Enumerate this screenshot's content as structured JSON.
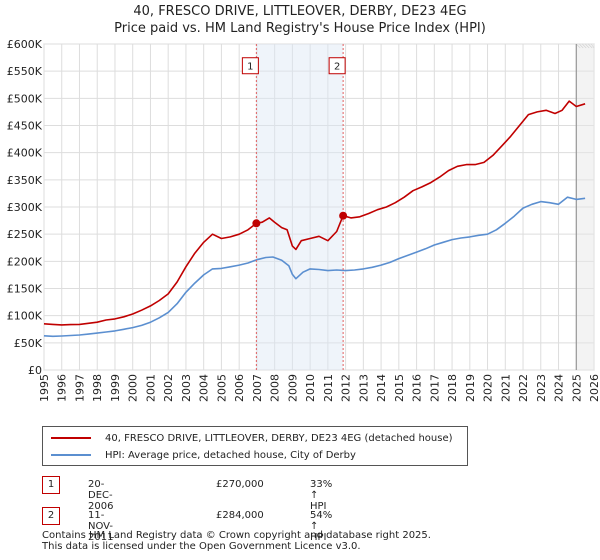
{
  "chart_data": {
    "type": "line",
    "title": "40, FRESCO DRIVE, LITTLEOVER, DERBY, DE23 4EG",
    "subtitle": "Price paid vs. HM Land Registry's House Price Index (HPI)",
    "xlim": [
      1995,
      2026
    ],
    "ylim": [
      0,
      600000
    ],
    "x_ticks": [
      1995,
      1996,
      1997,
      1998,
      1999,
      2000,
      2001,
      2002,
      2003,
      2004,
      2005,
      2006,
      2007,
      2008,
      2009,
      2010,
      2011,
      2012,
      2013,
      2014,
      2015,
      2016,
      2017,
      2018,
      2019,
      2020,
      2021,
      2022,
      2023,
      2024,
      2025,
      2026
    ],
    "y_ticks": [
      {
        "value": 0,
        "label": "£0"
      },
      {
        "value": 50000,
        "label": "£50K"
      },
      {
        "value": 100000,
        "label": "£100K"
      },
      {
        "value": 150000,
        "label": "£150K"
      },
      {
        "value": 200000,
        "label": "£200K"
      },
      {
        "value": 250000,
        "label": "£250K"
      },
      {
        "value": 300000,
        "label": "£300K"
      },
      {
        "value": 350000,
        "label": "£350K"
      },
      {
        "value": 400000,
        "label": "£400K"
      },
      {
        "value": 450000,
        "label": "£450K"
      },
      {
        "value": 500000,
        "label": "£500K"
      },
      {
        "value": 550000,
        "label": "£550K"
      },
      {
        "value": 600000,
        "label": "£600K"
      }
    ],
    "grid": true,
    "shaded_period": [
      2006.97,
      2011.86
    ],
    "forecast_from": 2025.0,
    "series": [
      {
        "name": "40, FRESCO DRIVE, LITTLEOVER, DERBY, DE23 4EG (detached house)",
        "color": "#c00000",
        "points": [
          [
            1995.0,
            85000
          ],
          [
            1995.5,
            84000
          ],
          [
            1996.0,
            83000
          ],
          [
            1996.5,
            83500
          ],
          [
            1997.0,
            84000
          ],
          [
            1997.5,
            86000
          ],
          [
            1998.0,
            88000
          ],
          [
            1998.5,
            92000
          ],
          [
            1999.0,
            94000
          ],
          [
            1999.5,
            98000
          ],
          [
            2000.0,
            103000
          ],
          [
            2000.5,
            110000
          ],
          [
            2001.0,
            118000
          ],
          [
            2001.5,
            128000
          ],
          [
            2002.0,
            140000
          ],
          [
            2002.5,
            162000
          ],
          [
            2003.0,
            190000
          ],
          [
            2003.5,
            215000
          ],
          [
            2004.0,
            235000
          ],
          [
            2004.5,
            250000
          ],
          [
            2005.0,
            242000
          ],
          [
            2005.5,
            245000
          ],
          [
            2006.0,
            250000
          ],
          [
            2006.5,
            258000
          ],
          [
            2006.97,
            270000
          ],
          [
            2007.3,
            272000
          ],
          [
            2007.7,
            280000
          ],
          [
            2008.0,
            272000
          ],
          [
            2008.4,
            262000
          ],
          [
            2008.7,
            258000
          ],
          [
            2009.0,
            228000
          ],
          [
            2009.2,
            222000
          ],
          [
            2009.5,
            238000
          ],
          [
            2010.0,
            242000
          ],
          [
            2010.5,
            246000
          ],
          [
            2011.0,
            238000
          ],
          [
            2011.5,
            255000
          ],
          [
            2011.86,
            284000
          ],
          [
            2012.3,
            280000
          ],
          [
            2012.8,
            282000
          ],
          [
            2013.3,
            288000
          ],
          [
            2013.8,
            295000
          ],
          [
            2014.3,
            300000
          ],
          [
            2014.8,
            308000
          ],
          [
            2015.3,
            318000
          ],
          [
            2015.8,
            330000
          ],
          [
            2016.3,
            337000
          ],
          [
            2016.8,
            345000
          ],
          [
            2017.3,
            355000
          ],
          [
            2017.8,
            367000
          ],
          [
            2018.3,
            375000
          ],
          [
            2018.8,
            378000
          ],
          [
            2019.3,
            378000
          ],
          [
            2019.8,
            382000
          ],
          [
            2020.3,
            395000
          ],
          [
            2020.8,
            412000
          ],
          [
            2021.3,
            430000
          ],
          [
            2021.8,
            450000
          ],
          [
            2022.3,
            470000
          ],
          [
            2022.8,
            475000
          ],
          [
            2023.3,
            478000
          ],
          [
            2023.8,
            472000
          ],
          [
            2024.2,
            478000
          ],
          [
            2024.6,
            495000
          ],
          [
            2025.0,
            485000
          ],
          [
            2025.5,
            490000
          ]
        ]
      },
      {
        "name": "HPI: Average price, detached house, City of Derby",
        "color": "#5b8fd0",
        "points": [
          [
            1995.0,
            63000
          ],
          [
            1995.5,
            62000
          ],
          [
            1996.0,
            62500
          ],
          [
            1996.5,
            63500
          ],
          [
            1997.0,
            64500
          ],
          [
            1997.5,
            66000
          ],
          [
            1998.0,
            68000
          ],
          [
            1998.5,
            70000
          ],
          [
            1999.0,
            72000
          ],
          [
            1999.5,
            75000
          ],
          [
            2000.0,
            78000
          ],
          [
            2000.5,
            82000
          ],
          [
            2001.0,
            88000
          ],
          [
            2001.5,
            96000
          ],
          [
            2002.0,
            106000
          ],
          [
            2002.5,
            122000
          ],
          [
            2003.0,
            143000
          ],
          [
            2003.5,
            160000
          ],
          [
            2004.0,
            175000
          ],
          [
            2004.5,
            186000
          ],
          [
            2005.0,
            187000
          ],
          [
            2005.5,
            190000
          ],
          [
            2006.0,
            193000
          ],
          [
            2006.5,
            197000
          ],
          [
            2007.0,
            203000
          ],
          [
            2007.5,
            207000
          ],
          [
            2007.9,
            208000
          ],
          [
            2008.4,
            202000
          ],
          [
            2008.8,
            192000
          ],
          [
            2009.0,
            176000
          ],
          [
            2009.2,
            168000
          ],
          [
            2009.6,
            180000
          ],
          [
            2010.0,
            186000
          ],
          [
            2010.5,
            185000
          ],
          [
            2011.0,
            183000
          ],
          [
            2011.5,
            184000
          ],
          [
            2012.0,
            183000
          ],
          [
            2012.5,
            184000
          ],
          [
            2013.0,
            186000
          ],
          [
            2013.5,
            189000
          ],
          [
            2014.0,
            193000
          ],
          [
            2014.5,
            198000
          ],
          [
            2015.0,
            205000
          ],
          [
            2015.5,
            211000
          ],
          [
            2016.0,
            217000
          ],
          [
            2016.5,
            223000
          ],
          [
            2017.0,
            230000
          ],
          [
            2017.5,
            235000
          ],
          [
            2018.0,
            240000
          ],
          [
            2018.5,
            243000
          ],
          [
            2019.0,
            245000
          ],
          [
            2019.5,
            248000
          ],
          [
            2020.0,
            250000
          ],
          [
            2020.5,
            258000
          ],
          [
            2021.0,
            270000
          ],
          [
            2021.5,
            283000
          ],
          [
            2022.0,
            298000
          ],
          [
            2022.5,
            305000
          ],
          [
            2023.0,
            310000
          ],
          [
            2023.5,
            308000
          ],
          [
            2024.0,
            305000
          ],
          [
            2024.5,
            318000
          ],
          [
            2025.0,
            314000
          ],
          [
            2025.5,
            316000
          ]
        ]
      }
    ],
    "annotations": [
      {
        "id": "1",
        "x": 2006.97,
        "value": 270000
      },
      {
        "id": "2",
        "x": 2011.86,
        "value": 284000
      }
    ]
  },
  "legend": {
    "items": [
      {
        "label": "40, FRESCO DRIVE, LITTLEOVER, DERBY, DE23 4EG (detached house)",
        "color": "#c00000"
      },
      {
        "label": "HPI: Average price, detached house, City of Derby",
        "color": "#5b8fd0"
      }
    ]
  },
  "transactions": [
    {
      "id": "1",
      "date": "20-DEC-2006",
      "price": "£270,000",
      "hpi": "33% ↑ HPI"
    },
    {
      "id": "2",
      "date": "11-NOV-2011",
      "price": "£284,000",
      "hpi": "54% ↑ HPI"
    }
  ],
  "footer": {
    "line1": "Contains HM Land Registry data © Crown copyright and database right 2025.",
    "line2": "This data is licensed under the Open Government Licence v3.0."
  }
}
